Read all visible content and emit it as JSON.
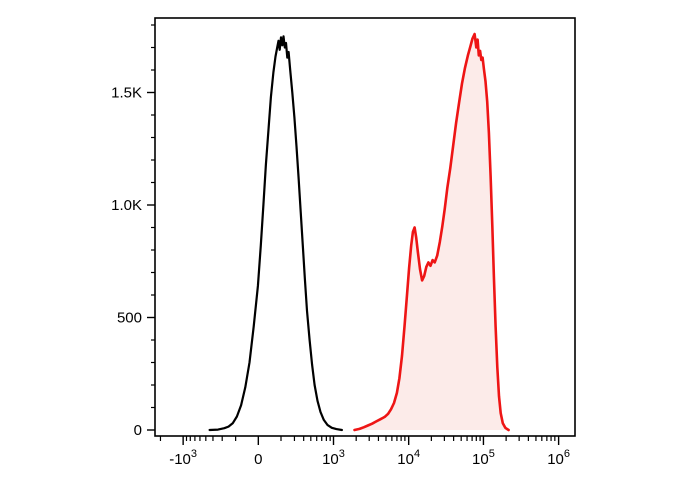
{
  "figure": {
    "kind": "flow-cytometry-histogram",
    "background": "#ffffff"
  },
  "chart_data": {
    "type": "area",
    "subtype": "overlaid-histograms",
    "title": "",
    "xlabel": "",
    "ylabel": "",
    "x_axis": {
      "scale": "logicle",
      "range_note": "biexponential axis from below -10^3 to 10^6",
      "major_ticks": [
        {
          "u": 0.067,
          "base": "-10",
          "exp": "3"
        },
        {
          "u": 0.246,
          "base": "0"
        },
        {
          "u": 0.425,
          "base": "10",
          "exp": "3"
        },
        {
          "u": 0.604,
          "base": "10",
          "exp": "4"
        },
        {
          "u": 0.782,
          "base": "10",
          "exp": "5"
        },
        {
          "u": 0.961,
          "base": "10",
          "exp": "6"
        }
      ],
      "minor_ticks_u": [
        0.013,
        0.075,
        0.084,
        0.095,
        0.107,
        0.121,
        0.138,
        0.16,
        0.192,
        0.3,
        0.332,
        0.354,
        0.371,
        0.385,
        0.397,
        0.408,
        0.417,
        0.479,
        0.51,
        0.532,
        0.55,
        0.564,
        0.576,
        0.586,
        0.595,
        0.658,
        0.689,
        0.711,
        0.729,
        0.743,
        0.755,
        0.765,
        0.774,
        0.836,
        0.867,
        0.889,
        0.907,
        0.921,
        0.933,
        0.943,
        0.952
      ]
    },
    "y_axis": {
      "max_count": 1830,
      "minor_step": 100,
      "ticks": [
        {
          "count": 0,
          "label": "0"
        },
        {
          "count": 500,
          "label": "500"
        },
        {
          "count": 1000,
          "label": "1.0K"
        },
        {
          "count": 1500,
          "label": "1.5K"
        }
      ]
    },
    "summary": {
      "black_series_mode_x": "~2x10^2 (linear region near 0)",
      "black_series_peak_count": 1750,
      "red_series_minor_mode_x": "~1x10^4",
      "red_series_minor_mode_count": 900,
      "red_series_major_mode_x": "~5x10^4",
      "red_series_major_mode_count": 1760
    },
    "series": [
      {
        "name": "black-outline-histogram",
        "color": "#000000",
        "fill": "none",
        "stroke_width": 2.2,
        "points": [
          [
            0.13,
            0
          ],
          [
            0.15,
            2
          ],
          [
            0.165,
            8
          ],
          [
            0.175,
            15
          ],
          [
            0.185,
            30
          ],
          [
            0.195,
            60
          ],
          [
            0.205,
            110
          ],
          [
            0.215,
            190
          ],
          [
            0.225,
            300
          ],
          [
            0.235,
            460
          ],
          [
            0.245,
            640
          ],
          [
            0.252,
            820
          ],
          [
            0.258,
            1000
          ],
          [
            0.264,
            1180
          ],
          [
            0.27,
            1330
          ],
          [
            0.276,
            1480
          ],
          [
            0.282,
            1590
          ],
          [
            0.287,
            1660
          ],
          [
            0.291,
            1700
          ],
          [
            0.294,
            1730
          ],
          [
            0.297,
            1690
          ],
          [
            0.3,
            1745
          ],
          [
            0.303,
            1710
          ],
          [
            0.306,
            1750
          ],
          [
            0.309,
            1700
          ],
          [
            0.312,
            1720
          ],
          [
            0.315,
            1655
          ],
          [
            0.318,
            1680
          ],
          [
            0.322,
            1600
          ],
          [
            0.327,
            1500
          ],
          [
            0.332,
            1390
          ],
          [
            0.337,
            1260
          ],
          [
            0.342,
            1120
          ],
          [
            0.347,
            970
          ],
          [
            0.352,
            820
          ],
          [
            0.357,
            670
          ],
          [
            0.362,
            530
          ],
          [
            0.368,
            400
          ],
          [
            0.374,
            290
          ],
          [
            0.38,
            200
          ],
          [
            0.387,
            130
          ],
          [
            0.394,
            80
          ],
          [
            0.402,
            45
          ],
          [
            0.411,
            22
          ],
          [
            0.421,
            10
          ],
          [
            0.432,
            4
          ],
          [
            0.445,
            0
          ]
        ]
      },
      {
        "name": "red-filled-histogram",
        "color": "#ee1515",
        "fill": "#fcebe9",
        "stroke_width": 2.6,
        "points": [
          [
            0.475,
            0
          ],
          [
            0.487,
            5
          ],
          [
            0.497,
            12
          ],
          [
            0.507,
            20
          ],
          [
            0.517,
            28
          ],
          [
            0.527,
            38
          ],
          [
            0.537,
            48
          ],
          [
            0.547,
            58
          ],
          [
            0.555,
            72
          ],
          [
            0.562,
            92
          ],
          [
            0.569,
            120
          ],
          [
            0.576,
            165
          ],
          [
            0.582,
            230
          ],
          [
            0.588,
            330
          ],
          [
            0.594,
            460
          ],
          [
            0.6,
            600
          ],
          [
            0.605,
            720
          ],
          [
            0.61,
            820
          ],
          [
            0.614,
            880
          ],
          [
            0.618,
            900
          ],
          [
            0.622,
            855
          ],
          [
            0.626,
            790
          ],
          [
            0.631,
            715
          ],
          [
            0.636,
            665
          ],
          [
            0.641,
            685
          ],
          [
            0.646,
            725
          ],
          [
            0.651,
            745
          ],
          [
            0.656,
            730
          ],
          [
            0.661,
            755
          ],
          [
            0.666,
            745
          ],
          [
            0.672,
            775
          ],
          [
            0.678,
            835
          ],
          [
            0.684,
            905
          ],
          [
            0.69,
            985
          ],
          [
            0.696,
            1075
          ],
          [
            0.703,
            1165
          ],
          [
            0.71,
            1265
          ],
          [
            0.717,
            1365
          ],
          [
            0.724,
            1455
          ],
          [
            0.731,
            1540
          ],
          [
            0.738,
            1610
          ],
          [
            0.745,
            1665
          ],
          [
            0.751,
            1705
          ],
          [
            0.756,
            1740
          ],
          [
            0.761,
            1760
          ],
          [
            0.765,
            1700
          ],
          [
            0.768,
            1735
          ],
          [
            0.771,
            1665
          ],
          [
            0.774,
            1685
          ],
          [
            0.777,
            1645
          ],
          [
            0.78,
            1655
          ],
          [
            0.783,
            1605
          ],
          [
            0.787,
            1550
          ],
          [
            0.791,
            1460
          ],
          [
            0.795,
            1320
          ],
          [
            0.799,
            1130
          ],
          [
            0.803,
            910
          ],
          [
            0.807,
            680
          ],
          [
            0.811,
            460
          ],
          [
            0.815,
            280
          ],
          [
            0.819,
            150
          ],
          [
            0.823,
            75
          ],
          [
            0.828,
            30
          ],
          [
            0.834,
            10
          ],
          [
            0.842,
            0
          ]
        ]
      }
    ]
  }
}
